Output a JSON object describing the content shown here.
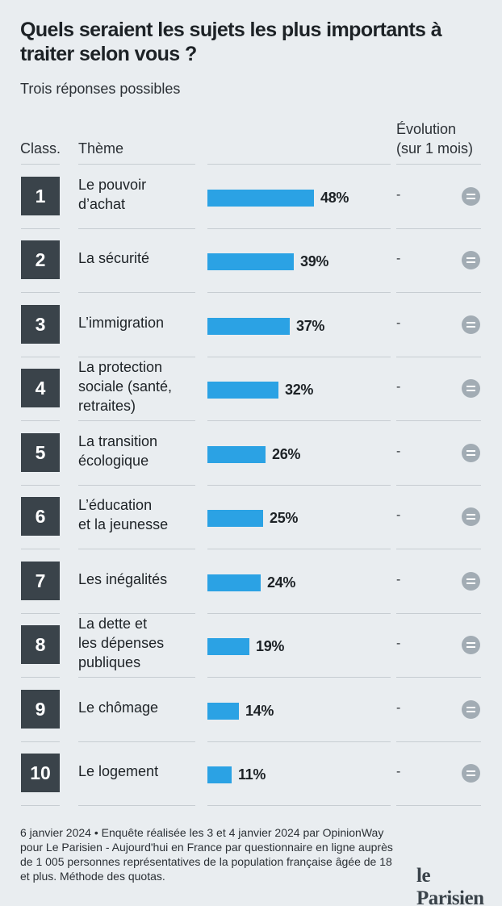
{
  "title": "Quels seraient les sujets les plus importants à traiter selon vous ?",
  "subtitle": "Trois réponses possibles",
  "headers": {
    "rank": "Class.",
    "theme": "Thème",
    "evolution_line1": "Évolution",
    "evolution_line2": "(sur 1 mois)"
  },
  "chart_data": {
    "type": "bar",
    "orientation": "horizontal",
    "title": "Quels seraient les sujets les plus importants à traiter selon vous ?",
    "unit": "%",
    "xlim": [
      0,
      48
    ],
    "rows": [
      {
        "rank": "1",
        "theme": [
          "Le pouvoir",
          "d’achat"
        ],
        "value": 48,
        "label": "48%",
        "evolution": "-"
      },
      {
        "rank": "2",
        "theme": [
          "La sécurité"
        ],
        "value": 39,
        "label": "39%",
        "evolution": "-"
      },
      {
        "rank": "3",
        "theme": [
          "L’immigration"
        ],
        "value": 37,
        "label": "37%",
        "evolution": "-"
      },
      {
        "rank": "4",
        "theme": [
          "La protection",
          "sociale (santé,",
          "retraites)"
        ],
        "value": 32,
        "label": "32%",
        "evolution": "-"
      },
      {
        "rank": "5",
        "theme": [
          "La transition",
          "écologique"
        ],
        "value": 26,
        "label": "26%",
        "evolution": "-"
      },
      {
        "rank": "6",
        "theme": [
          "L’éducation",
          "et la jeunesse"
        ],
        "value": 25,
        "label": "25%",
        "evolution": "-"
      },
      {
        "rank": "7",
        "theme": [
          "Les inégalités"
        ],
        "value": 24,
        "label": "24%",
        "evolution": "-"
      },
      {
        "rank": "8",
        "theme": [
          "La dette et",
          "les dépenses",
          "publiques"
        ],
        "value": 19,
        "label": "19%",
        "evolution": "-"
      },
      {
        "rank": "9",
        "theme": [
          "Le chômage"
        ],
        "value": 14,
        "label": "14%",
        "evolution": "-"
      },
      {
        "rank": "10",
        "theme": [
          "Le logement"
        ],
        "value": 11,
        "label": "11%",
        "evolution": "-"
      }
    ]
  },
  "footnote": "6 janvier 2024 • Enquête réalisée les 3 et 4 janvier 2024 par OpinionWay pour Le Parisien - Aujourd'hui en France par questionnaire en ligne auprès de 1 005 personnes représentatives de la population française âgée de 18 et plus. Méthode des quotas.",
  "logo": "le Parisien",
  "colors": {
    "bar": "#2ba2e4",
    "rank_box": "#3a434a",
    "equal_icon": "#a2acb4",
    "background": "#e9edf0"
  }
}
